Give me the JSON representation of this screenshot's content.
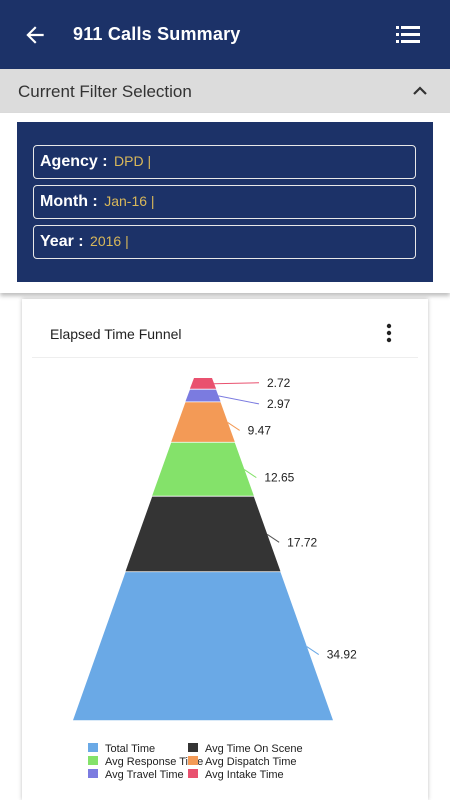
{
  "header": {
    "title": "911 Calls Summary",
    "back_icon": "arrow-back-icon",
    "menu_icon": "list-icon"
  },
  "filter": {
    "label": "Current Filter Selection",
    "toggle_icon": "chevron-up-icon",
    "fields": [
      {
        "key": "Agency :",
        "value": "DPD |"
      },
      {
        "key": "Month :",
        "value": "Jan-16 |"
      },
      {
        "key": "Year :",
        "value": "2016 |"
      }
    ]
  },
  "card": {
    "title": "Elapsed Time Funnel",
    "more_icon": "more-vertical-icon"
  },
  "colors": {
    "primary": "#1c3268",
    "filter_value": "#d9b85a"
  },
  "chart_data": {
    "type": "funnel",
    "series": [
      {
        "name": "Avg Intake Time",
        "value": 2.72,
        "label": "2.72",
        "color": "#e9516f"
      },
      {
        "name": "Avg Travel Time",
        "value": 2.97,
        "label": "2.97",
        "color": "#7b7be0"
      },
      {
        "name": "Avg Dispatch Time",
        "value": 9.47,
        "label": "9.47",
        "color": "#f39a56"
      },
      {
        "name": "Avg Response Time",
        "value": 12.65,
        "label": "12.65",
        "color": "#84e26a"
      },
      {
        "name": "Avg Time On Scene",
        "value": 17.72,
        "label": "17.72",
        "color": "#343434"
      },
      {
        "name": "Total Time",
        "value": 34.92,
        "label": "34.92",
        "color": "#6aa9e6"
      }
    ],
    "legend": [
      {
        "name": "Total Time",
        "color": "#6aa9e6"
      },
      {
        "name": "Avg Time On Scene",
        "color": "#343434"
      },
      {
        "name": "Avg Response Time",
        "color": "#84e26a"
      },
      {
        "name": "Avg Dispatch Time",
        "color": "#f39a56"
      },
      {
        "name": "Avg Travel Time",
        "color": "#7b7be0"
      },
      {
        "name": "Avg Intake Time",
        "color": "#e9516f"
      }
    ],
    "legend_position": "bottom"
  }
}
